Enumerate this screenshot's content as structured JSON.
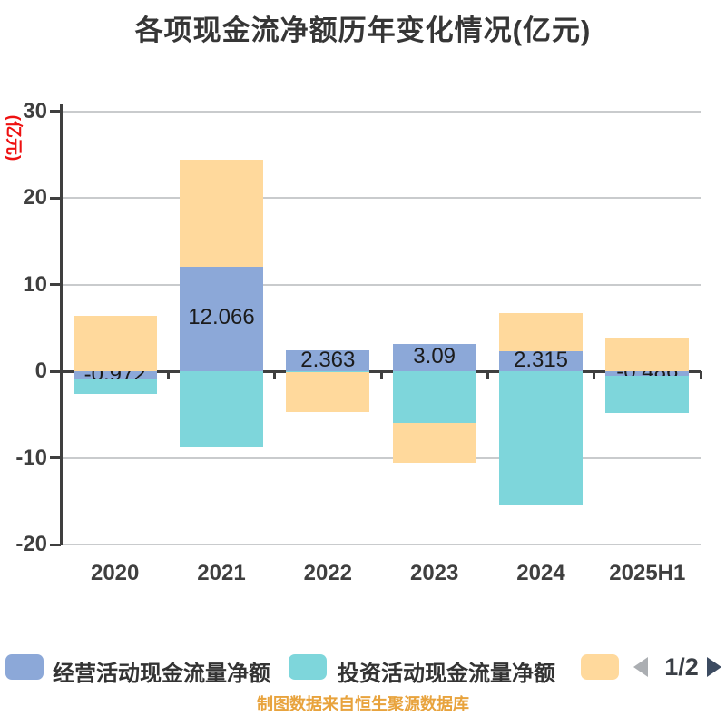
{
  "title": "各项现金流净额历年变化情况(亿元)",
  "y_unit_label": "(亿元)",
  "footer": "制图数据来自恒生聚源数据库",
  "legend": {
    "items": [
      {
        "label": "经营活动现金流量净额",
        "color": "#8ca8d8"
      },
      {
        "label": "投资活动现金流量净额",
        "color": "#7ed6db"
      },
      {
        "label": "",
        "color": "#ffd99c"
      }
    ],
    "page_indicator": "1/2",
    "prev_arrow_color": "#abaeb2",
    "next_arrow_color": "#3c4b61"
  },
  "chart_data": {
    "type": "bar",
    "stacked": true,
    "title": "各项现金流净额历年变化情况(亿元)",
    "ylabel": "(亿元)",
    "xlabel": "",
    "grid": true,
    "legend_position": "bottom",
    "ylim": [
      -20,
      30
    ],
    "yticks": [
      30,
      20,
      10,
      0,
      -10,
      -20
    ],
    "categories": [
      "2020",
      "2021",
      "2022",
      "2023",
      "2024",
      "2025H1"
    ],
    "series": [
      {
        "key": "operating",
        "name": "经营活动现金流量净额",
        "color": "#8ca8d8",
        "values": [
          -0.972,
          12.066,
          2.363,
          3.09,
          2.315,
          -0.486
        ]
      },
      {
        "key": "investing",
        "name": "投资活动现金流量净额",
        "color": "#7ed6db",
        "values": [
          -1.63,
          -8.76,
          -0.15,
          -5.97,
          -15.4,
          -4.31
        ]
      },
      {
        "key": "series-3",
        "name": "",
        "color": "#ffd99c",
        "values": [
          6.4,
          12.33,
          -4.56,
          -4.63,
          4.39,
          3.9
        ]
      }
    ],
    "data_labels": {
      "series": "经营活动现金流量净额",
      "values": [
        "-0.972",
        "12.066",
        "2.363",
        "3.09",
        "2.315",
        "-0.486"
      ]
    }
  }
}
